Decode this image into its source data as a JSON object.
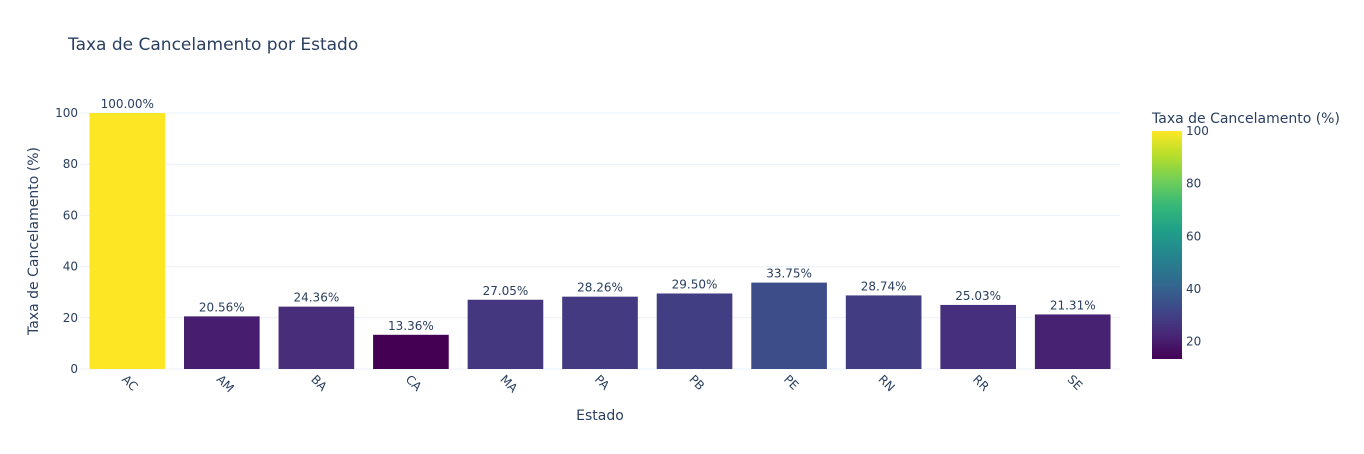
{
  "chart_data": {
    "type": "bar",
    "title": "Taxa de Cancelamento por Estado",
    "xlabel": "Estado",
    "ylabel": "Taxa de Cancelamento (%)",
    "categories": [
      "AC",
      "AM",
      "BA",
      "CA",
      "MA",
      "PA",
      "PB",
      "PE",
      "RN",
      "RR",
      "SE"
    ],
    "values": [
      100.0,
      20.56,
      24.36,
      13.36,
      27.05,
      28.26,
      29.5,
      33.75,
      28.74,
      25.03,
      21.31
    ],
    "value_labels": [
      "100.00%",
      "20.56%",
      "24.36%",
      "13.36%",
      "27.05%",
      "28.26%",
      "29.50%",
      "33.75%",
      "28.74%",
      "25.03%",
      "21.31%"
    ],
    "ylim": [
      0,
      100
    ],
    "yticks": [
      0,
      20,
      40,
      60,
      80,
      100
    ],
    "grid": true,
    "colorscale": "Viridis",
    "colorbar": {
      "title": "Taxa de Cancelamento (%)",
      "range": [
        13.36,
        100
      ],
      "ticks": [
        20,
        40,
        60,
        80,
        100
      ],
      "placement": "right"
    }
  }
}
